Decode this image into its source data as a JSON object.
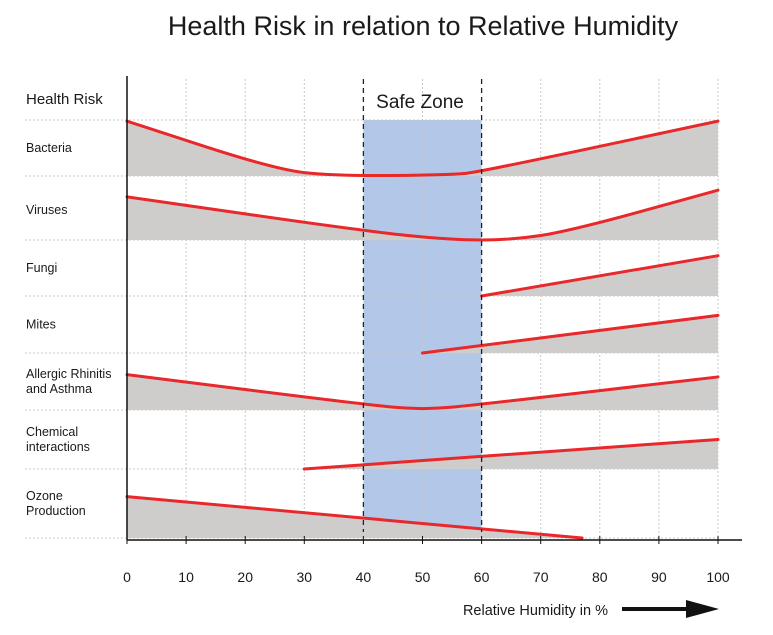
{
  "chart_data": {
    "type": "area",
    "title": "Health Risk in relation to Relative Humidity",
    "ylabel": "Health Risk",
    "xlabel": "Relative Humidity in %",
    "xlim": [
      0,
      100
    ],
    "x_ticks": [
      0,
      10,
      20,
      30,
      40,
      50,
      60,
      70,
      80,
      90,
      100
    ],
    "safe_zone": {
      "label": "Safe Zone",
      "from": 40,
      "to": 60
    },
    "colors": {
      "line": "#e8282b",
      "fill": "#cfcccc",
      "safe": "#b3c8e8",
      "grid": "#c8c8c8",
      "arrow": "#111111"
    },
    "series": [
      {
        "name": "Bacteria",
        "lines": [
          "Bacteria"
        ],
        "points": [
          [
            0,
            0.98
          ],
          [
            25,
            0.12
          ],
          [
            35,
            0.0
          ],
          [
            55,
            0.02
          ],
          [
            60,
            0.08
          ],
          [
            100,
            0.98
          ]
        ]
      },
      {
        "name": "Viruses",
        "lines": [
          "Viruses"
        ],
        "points": [
          [
            0,
            0.72
          ],
          [
            40,
            0.15
          ],
          [
            55,
            0.0
          ],
          [
            65,
            0.0
          ],
          [
            75,
            0.15
          ],
          [
            100,
            0.83
          ]
        ]
      },
      {
        "name": "Fungi",
        "lines": [
          "Fungi"
        ],
        "points": [
          [
            60,
            0.0
          ],
          [
            100,
            0.72
          ]
        ]
      },
      {
        "name": "Mites",
        "lines": [
          "Mites"
        ],
        "points": [
          [
            50,
            0.0
          ],
          [
            100,
            0.66
          ]
        ]
      },
      {
        "name": "Allergic Rhinitis and Asthma",
        "lines": [
          "Allergic Rhinitis",
          "and Asthma"
        ],
        "points": [
          [
            0,
            0.62
          ],
          [
            40,
            0.1
          ],
          [
            50,
            0.0
          ],
          [
            60,
            0.1
          ],
          [
            100,
            0.58
          ]
        ]
      },
      {
        "name": "Chemical interactions",
        "lines": [
          "Chemical",
          "interactions"
        ],
        "points": [
          [
            30,
            0.0
          ],
          [
            100,
            0.5
          ]
        ]
      },
      {
        "name": "Ozone Production",
        "lines": [
          "Ozone",
          "Production"
        ],
        "points": [
          [
            0,
            0.6
          ],
          [
            77,
            0.0
          ]
        ]
      }
    ]
  }
}
